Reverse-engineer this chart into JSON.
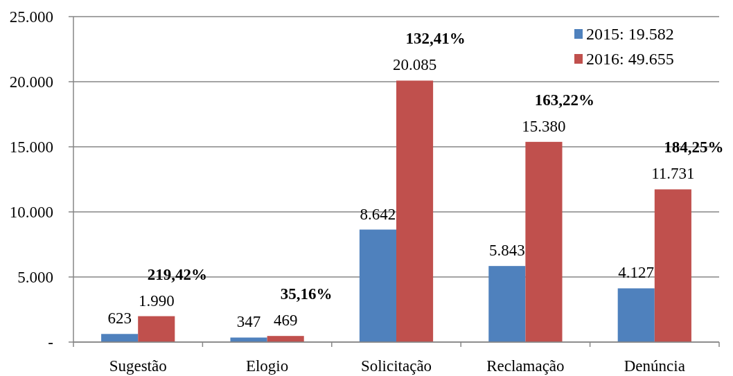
{
  "chart_data": {
    "type": "bar",
    "categories": [
      "Sugestão",
      "Elogio",
      "Solicitação",
      "Reclamação",
      "Denúncia"
    ],
    "series": [
      {
        "name": "2015: 19.582",
        "color": "#4f81bd",
        "values": [
          623,
          347,
          8642,
          5843,
          4127
        ],
        "value_labels": [
          "623",
          "347",
          "8.642",
          "5.843",
          "4.127"
        ]
      },
      {
        "name": "2016: 49.655",
        "color": "#c0504d",
        "values": [
          1990,
          469,
          20085,
          15380,
          11731
        ],
        "value_labels": [
          "1.990",
          "469",
          "20.085",
          "15.380",
          "11.731"
        ]
      }
    ],
    "ylim": [
      0,
      25000
    ],
    "yticks": [
      {
        "value": 0,
        "label": "-"
      },
      {
        "value": 5000,
        "label": "5.000"
      },
      {
        "value": 10000,
        "label": "10.000"
      },
      {
        "value": 15000,
        "label": "15.000"
      },
      {
        "value": 20000,
        "label": "20.000"
      },
      {
        "value": 25000,
        "label": "25.000"
      }
    ],
    "grid": "y",
    "legend": "top right",
    "annotations": [
      {
        "text": "219,42%",
        "x": "Sugestão",
        "y": 1990
      },
      {
        "text": "35,16%",
        "x": "Elogio",
        "y": 469
      },
      {
        "text": "132,41%",
        "x": "Solicitação",
        "y": 20085
      },
      {
        "text": "163,22%",
        "x": "Reclamação",
        "y": 15380
      },
      {
        "text": "184,25%",
        "x": "Denúncia",
        "y": 11731
      }
    ]
  }
}
